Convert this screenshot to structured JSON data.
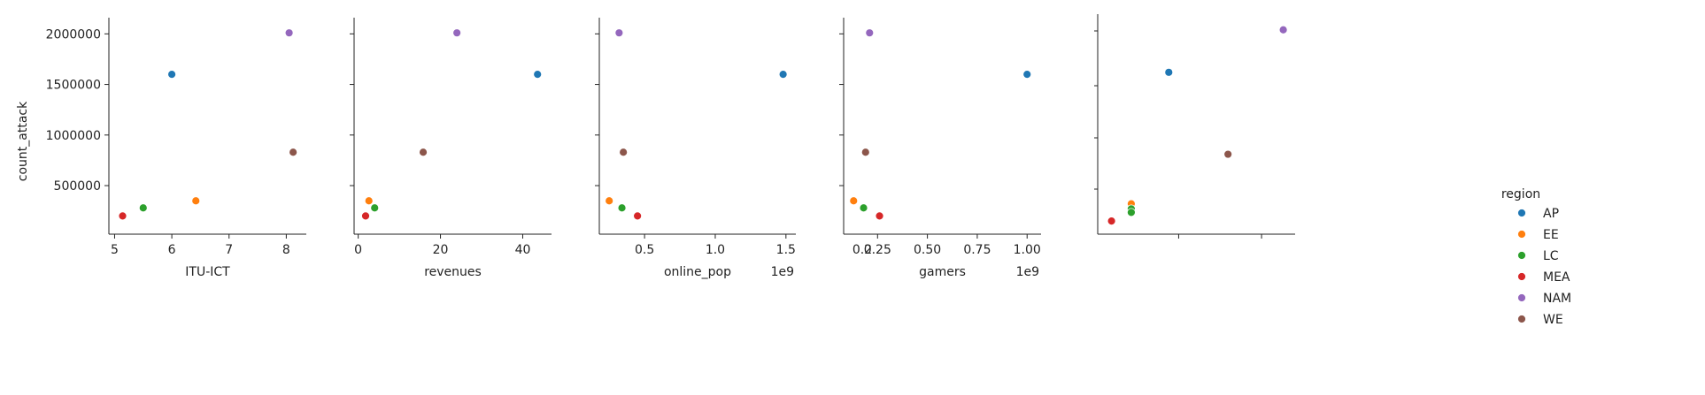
{
  "chart_data": {
    "type": "scatter",
    "y_label": "count_attack",
    "y_ticks": [
      {
        "value": 500000,
        "label": "500000"
      },
      {
        "value": 1000000,
        "label": "1000000"
      },
      {
        "value": 1500000,
        "label": "1500000"
      },
      {
        "value": 2000000,
        "label": "2000000"
      }
    ],
    "ylim": [
      20000,
      2160000
    ],
    "legend": {
      "title": "region",
      "placement": "right",
      "entries": [
        {
          "name": "AP",
          "color": "#1f77b4"
        },
        {
          "name": "EE",
          "color": "#ff7f0e"
        },
        {
          "name": "LC",
          "color": "#2ca02c"
        },
        {
          "name": "MEA",
          "color": "#d62728"
        },
        {
          "name": "NAM",
          "color": "#9467bd"
        },
        {
          "name": "WE",
          "color": "#8c564b"
        }
      ]
    },
    "panels": [
      {
        "id": "itu-ict",
        "xlabel": "ITU-ICT",
        "offset": "",
        "xlim": [
          4.9,
          8.35
        ],
        "x_ticks": [
          {
            "value": 5,
            "label": "5"
          },
          {
            "value": 6,
            "label": "6"
          },
          {
            "value": 7,
            "label": "7"
          },
          {
            "value": 8,
            "label": "8"
          }
        ],
        "points": [
          {
            "region": "AP",
            "x": 6.0,
            "y": 1600000
          },
          {
            "region": "EE",
            "x": 6.42,
            "y": 350000
          },
          {
            "region": "LC",
            "x": 5.5,
            "y": 280000
          },
          {
            "region": "MEA",
            "x": 5.14,
            "y": 200000
          },
          {
            "region": "NAM",
            "x": 8.05,
            "y": 2010000
          },
          {
            "region": "WE",
            "x": 8.12,
            "y": 830000
          }
        ]
      },
      {
        "id": "revenues",
        "xlabel": "revenues",
        "offset": "",
        "xlim": [
          -1.0,
          47.0
        ],
        "x_ticks": [
          {
            "value": 0,
            "label": "0"
          },
          {
            "value": 20,
            "label": "20"
          },
          {
            "value": 40,
            "label": "40"
          }
        ],
        "points": [
          {
            "region": "AP",
            "x": 43.6,
            "y": 1600000
          },
          {
            "region": "EE",
            "x": 2.6,
            "y": 350000
          },
          {
            "region": "LC",
            "x": 4.0,
            "y": 280000
          },
          {
            "region": "MEA",
            "x": 1.8,
            "y": 200000
          },
          {
            "region": "NAM",
            "x": 24.0,
            "y": 2010000
          },
          {
            "region": "WE",
            "x": 15.8,
            "y": 830000
          }
        ]
      },
      {
        "id": "online-pop",
        "xlabel": "online_pop",
        "offset": "1e9",
        "xlim": [
          0.18,
          1.57
        ],
        "x_ticks": [
          {
            "value": 0.5,
            "label": "0.5"
          },
          {
            "value": 1.0,
            "label": "1.0"
          },
          {
            "value": 1.5,
            "label": "1.5"
          }
        ],
        "points": [
          {
            "region": "AP",
            "x": 1.48,
            "y": 1600000
          },
          {
            "region": "EE",
            "x": 0.25,
            "y": 350000
          },
          {
            "region": "LC",
            "x": 0.34,
            "y": 280000
          },
          {
            "region": "MEA",
            "x": 0.45,
            "y": 200000
          },
          {
            "region": "NAM",
            "x": 0.32,
            "y": 2010000
          },
          {
            "region": "WE",
            "x": 0.35,
            "y": 830000
          }
        ]
      },
      {
        "id": "gamers",
        "xlabel": "gamers",
        "offset": "1e9",
        "xlim": [
          0.08,
          1.07
        ],
        "x_ticks": [
          {
            "value": 0.25,
            "label": "0.25"
          },
          {
            "value": 0.5,
            "label": "0.50"
          },
          {
            "value": 0.75,
            "label": "0.75"
          },
          {
            "value": 1.0,
            "label": "1.00"
          }
        ],
        "extra_tick_labels": [
          {
            "value": 0.2,
            "label": "0.2"
          }
        ],
        "points": [
          {
            "region": "AP",
            "x": 1.0,
            "y": 1600000
          },
          {
            "region": "EE",
            "x": 0.13,
            "y": 350000
          },
          {
            "region": "LC",
            "x": 0.18,
            "y": 280000
          },
          {
            "region": "MEA",
            "x": 0.26,
            "y": 200000
          },
          {
            "region": "NAM",
            "x": 0.21,
            "y": 2010000
          },
          {
            "region": "WE",
            "x": 0.19,
            "y": 830000
          }
        ]
      },
      {
        "id": "fifth",
        "xlabel": "",
        "offset": "",
        "xlim": [
          0.0,
          1.0
        ],
        "x_ticks": [
          {
            "value": 0.41,
            "label": ""
          },
          {
            "value": 0.83,
            "label": ""
          }
        ],
        "points": [
          {
            "region": "AP",
            "x": 0.36,
            "y": 1620000
          },
          {
            "region": "EE",
            "x": 0.17,
            "y": 320000
          },
          {
            "region": "LC",
            "x": 0.17,
            "y": 270000
          },
          {
            "region": "LC",
            "x": 0.17,
            "y": 235000
          },
          {
            "region": "MEA",
            "x": 0.07,
            "y": 150000
          },
          {
            "region": "NAM",
            "x": 0.94,
            "y": 2040000
          },
          {
            "region": "WE",
            "x": 0.66,
            "y": 810000
          }
        ]
      }
    ]
  }
}
